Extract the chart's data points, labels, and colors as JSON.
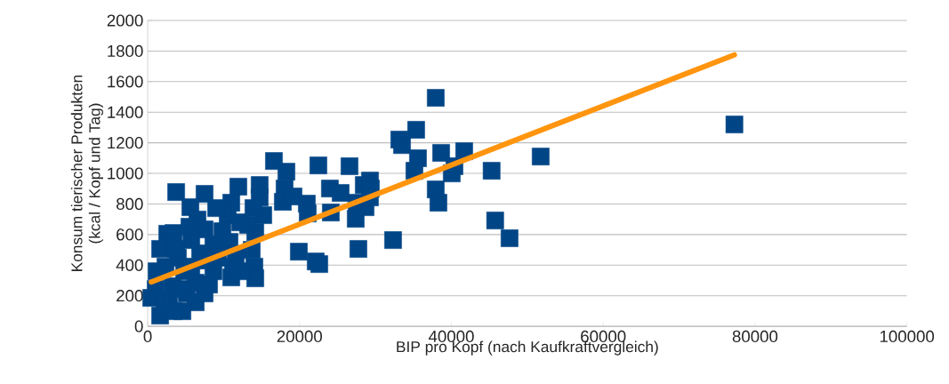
{
  "chart_data": {
    "type": "scatter",
    "xlabel": "BIP pro Kopf (nach Kaufkraftvergleich)",
    "ylabel": "Konsum tierischer Produkten\n(kcal / Kopf und Tag)",
    "xlim": [
      0,
      100000
    ],
    "ylim": [
      0,
      2000
    ],
    "xticks": [
      0,
      20000,
      40000,
      60000,
      80000,
      100000
    ],
    "yticks": [
      0,
      200,
      400,
      600,
      800,
      1000,
      1200,
      1400,
      1600,
      1800,
      2000
    ],
    "grid": "y",
    "marker": "square",
    "series": [
      {
        "color": "#004586",
        "x": [
          77280,
          51760,
          45300,
          45770,
          47660,
          37940,
          35360,
          33140,
          33500,
          41690,
          38650,
          35600,
          40400,
          35130,
          40050,
          37940,
          38290,
          32320,
          27750,
          26580,
          22480,
          29280,
          28460,
          29390,
          24000,
          25410,
          27520,
          28690,
          27400,
          24120,
          29270,
          20960,
          21080,
          18270,
          16630,
          18030,
          17800,
          19200,
          19910,
          22130,
          22600,
          14750,
          11940,
          14750,
          15220,
          14170,
          13700,
          14050,
          14170,
          13930,
          13230,
          11010,
          10540,
          7490,
          3750,
          9020,
          5620,
          6560,
          7490,
          10770,
          11590,
          11010,
          8660,
          8660,
          7490,
          6320,
          5150,
          2810,
          1640,
          1640,
          2580,
          3400,
          3980,
          4800,
          5740,
          5500,
          2340,
          1170,
          1050,
          3280,
          4330,
          470,
          3750,
          6910,
          9840,
          9250,
          12180,
          11240,
          8080,
          5740,
          7490,
          6320,
          4570,
          3400,
          2220,
          12180
        ],
        "values": [
          1320,
          1110,
          1017,
          692,
          576,
          1494,
          1285,
          1221,
          1185,
          1145,
          1134,
          1099,
          1047,
          1017,
          1000,
          895,
          808,
          564,
          506,
          1047,
          1052,
          953,
          924,
          901,
          901,
          872,
          808,
          779,
          703,
          744,
          843,
          802,
          738,
          1011,
          1081,
          901,
          814,
          849,
          488,
          424,
          407,
          924,
          913,
          843,
          727,
          616,
          500,
          390,
          314,
          773,
          663,
          808,
          727,
          866,
          878,
          773,
          779,
          698,
          634,
          552,
          465,
          320,
          535,
          360,
          430,
          285,
          215,
          169,
          70,
          506,
          605,
          610,
          448,
          360,
          564,
          651,
          390,
          360,
          244,
          262,
          244,
          186,
          506,
          477,
          622,
          448,
          680,
          390,
          273,
          390,
          215,
          157,
          99,
          99,
          128,
          360
        ]
      },
      {
        "type": "line",
        "color": "#ff950e",
        "marker": "none",
        "x": [
          470,
          77280
        ],
        "values": [
          290,
          1775
        ]
      }
    ]
  }
}
